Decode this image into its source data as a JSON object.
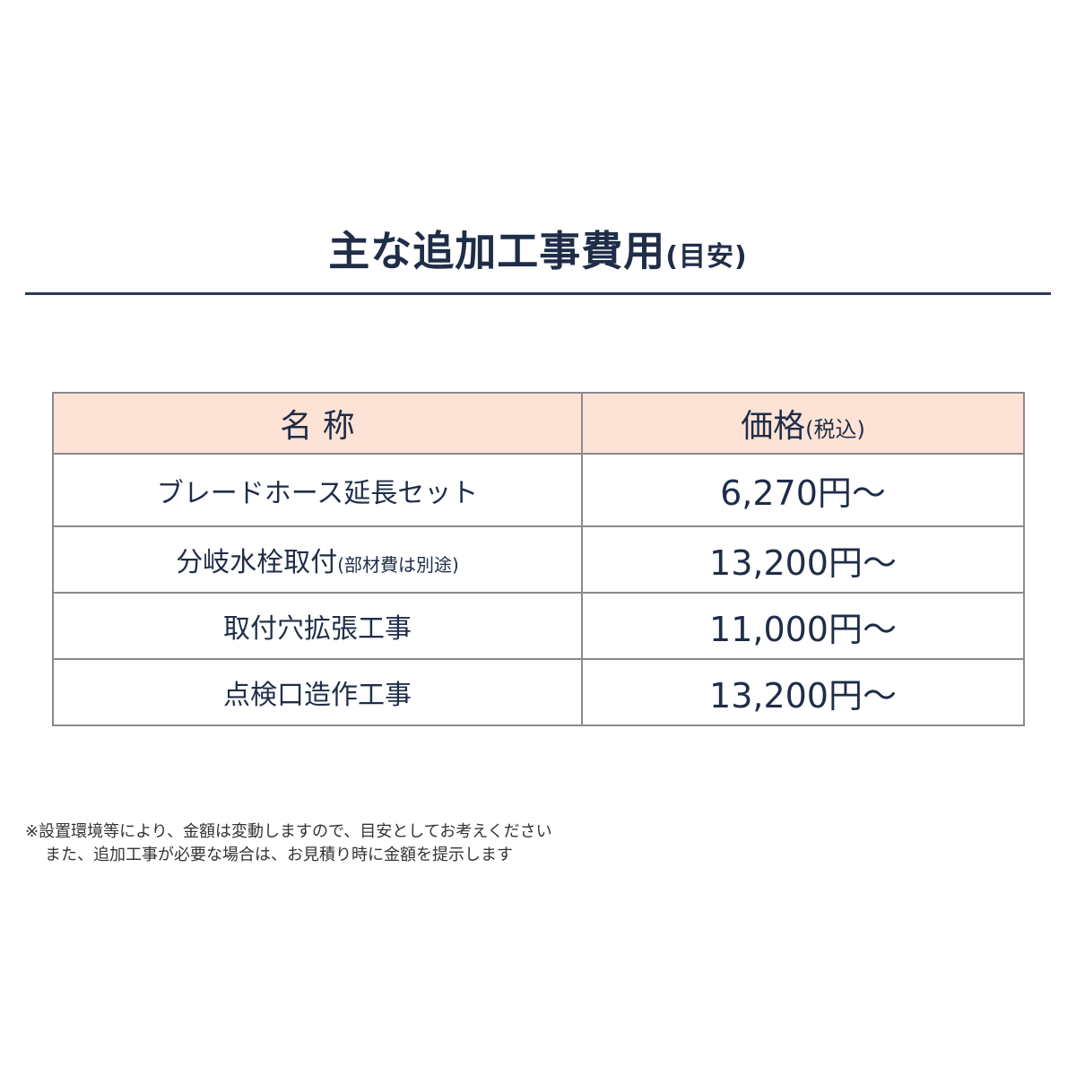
{
  "title": {
    "main": "主な追加工事費用",
    "sub": "(目安)"
  },
  "table": {
    "headers": {
      "name": "名 称",
      "price": "価格",
      "price_note": "(税込)"
    },
    "rows": [
      {
        "name": "ブレードホース延長セット",
        "note": "",
        "price": "6,270円〜"
      },
      {
        "name": "分岐水栓取付",
        "note": "(部材費は別途)",
        "price": "13,200円〜"
      },
      {
        "name": "取付穴拡張工事",
        "note": "",
        "price": "11,000円〜"
      },
      {
        "name": "点検口造作工事",
        "note": "",
        "price": "13,200円〜"
      }
    ]
  },
  "notes": [
    "※設置環境等により、金額は変動しますので、目安としてお考えください",
    "また、追加工事が必要な場合は、お見積り時に金額を提示します"
  ],
  "colors": {
    "text": "#1f2d48",
    "header_bg": "#fce3d6",
    "border": "#8a8a8f"
  }
}
